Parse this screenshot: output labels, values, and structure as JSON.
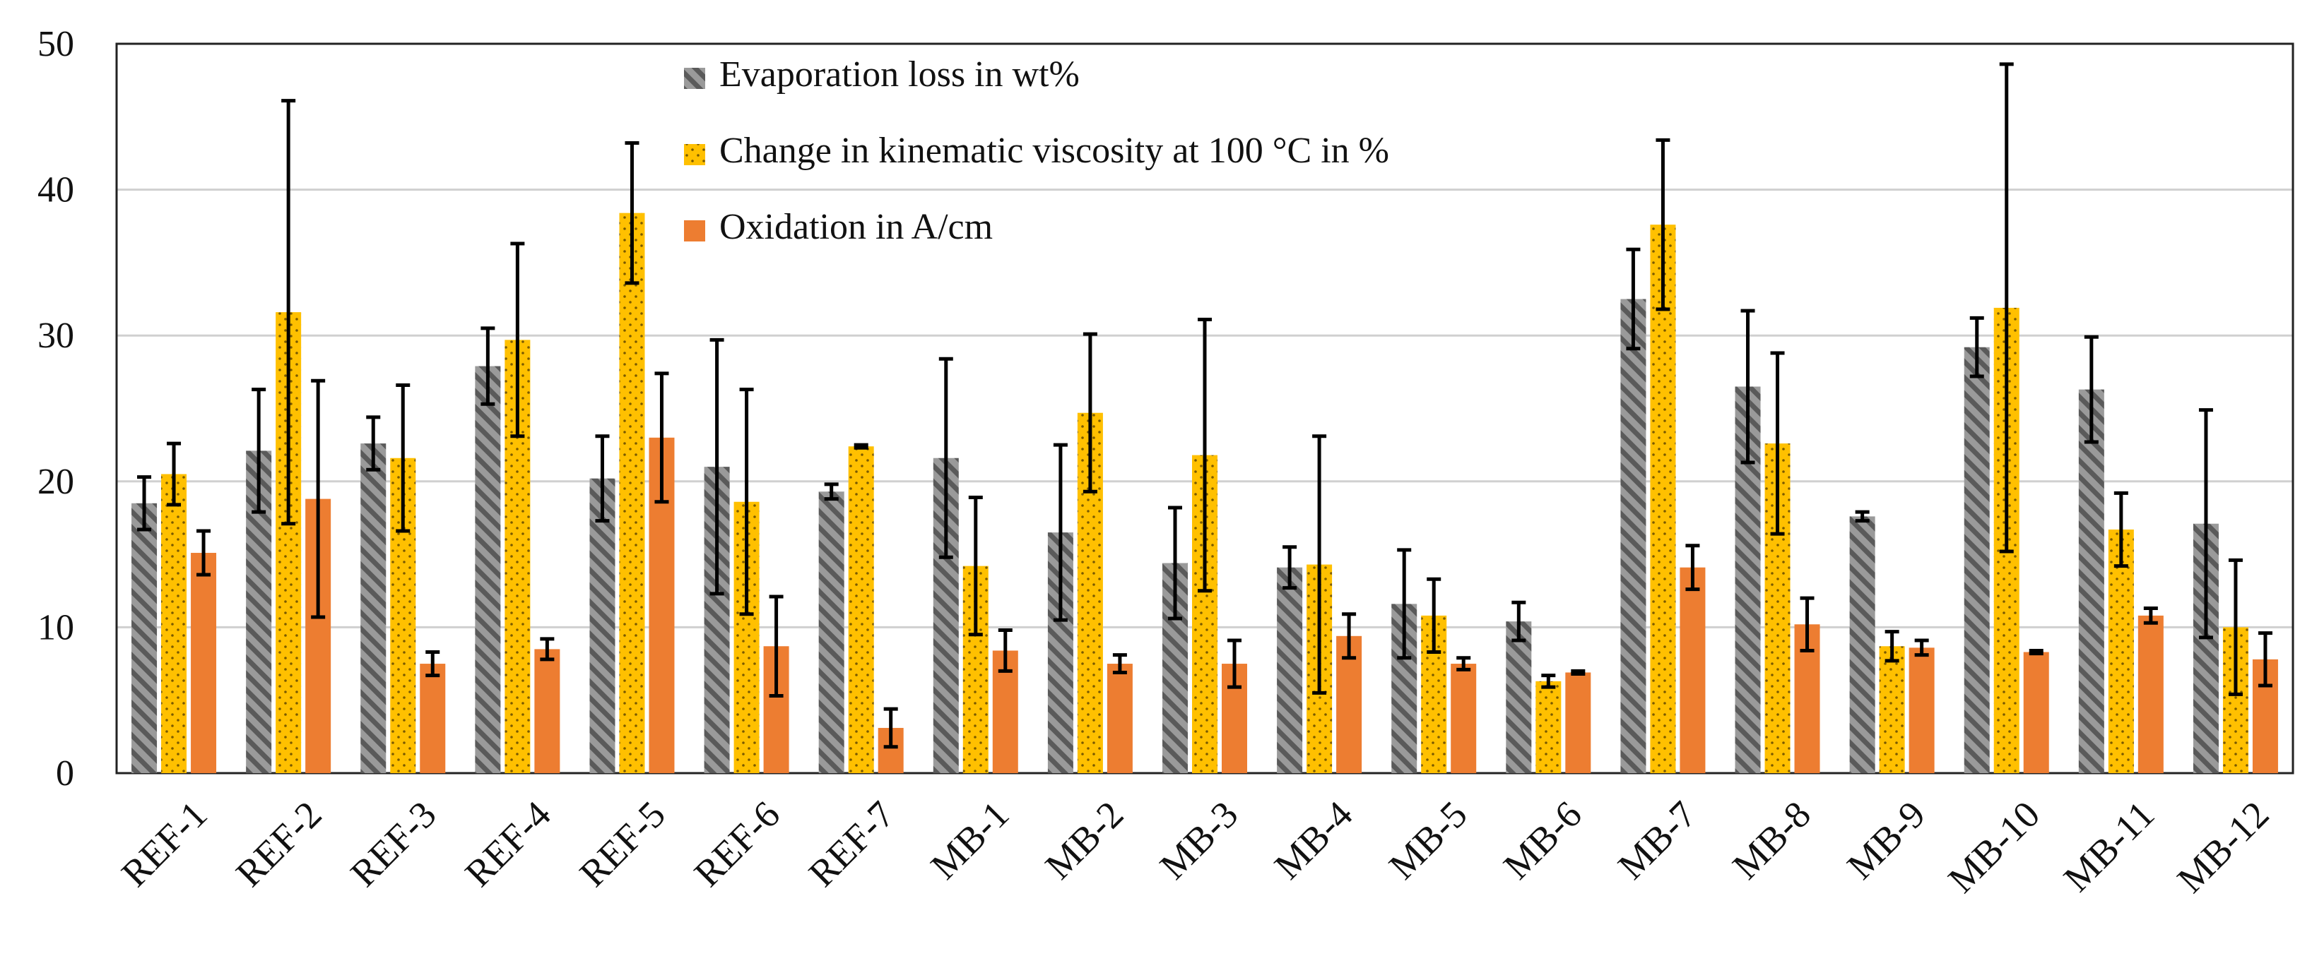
{
  "chart_data": {
    "type": "bar",
    "title": "",
    "xlabel": "",
    "ylabel": "",
    "ylim": [
      0,
      50
    ],
    "yticks": [
      0,
      10,
      20,
      30,
      40,
      50
    ],
    "grid": true,
    "legend_position": "top-center",
    "categories": [
      "REF-1",
      "REF-2",
      "REF-3",
      "REF-4",
      "REF-5",
      "REF-6",
      "REF-7",
      "MB-1",
      "MB-2",
      "MB-3",
      "MB-4",
      "MB-5",
      "MB-6",
      "MB-7",
      "MB-8",
      "MB-9",
      "MB-10",
      "MB-11",
      "MB-12"
    ],
    "series": [
      {
        "name": "Evaporation loss in wt%",
        "color": "#8c8c8c",
        "pattern": "diagonal-hatch",
        "values": [
          18.5,
          22.1,
          22.6,
          27.9,
          20.2,
          21.0,
          19.3,
          21.6,
          16.5,
          14.4,
          14.1,
          11.6,
          10.4,
          32.5,
          26.5,
          17.6,
          29.2,
          26.3,
          17.1
        ],
        "errors": [
          1.8,
          4.2,
          1.8,
          2.6,
          2.9,
          8.7,
          0.5,
          6.8,
          6.0,
          3.8,
          1.4,
          3.7,
          1.3,
          3.4,
          5.2,
          0.3,
          2.0,
          3.6,
          7.8
        ]
      },
      {
        "name": "Change in kinematic viscosity at 100 °C in %",
        "color": "#ffc000",
        "pattern": "dotted",
        "values": [
          20.5,
          31.6,
          21.6,
          29.7,
          38.4,
          18.6,
          22.4,
          14.2,
          24.7,
          21.8,
          14.3,
          10.8,
          6.3,
          37.6,
          22.6,
          8.7,
          31.9,
          16.7,
          10.0
        ],
        "errors": [
          2.1,
          14.5,
          5.0,
          6.6,
          4.8,
          7.7,
          0.1,
          4.7,
          5.4,
          9.3,
          8.8,
          2.5,
          0.4,
          5.8,
          6.2,
          1.0,
          16.7,
          2.5,
          4.6
        ]
      },
      {
        "name": "Oxidation in A/cm",
        "color": "#ed7d31",
        "pattern": "solid",
        "values": [
          15.1,
          18.8,
          7.5,
          8.5,
          23.0,
          8.7,
          3.1,
          8.4,
          7.5,
          7.5,
          9.4,
          7.5,
          6.9,
          14.1,
          10.2,
          8.6,
          8.3,
          10.8,
          7.8
        ],
        "errors": [
          1.5,
          8.1,
          0.8,
          0.7,
          4.4,
          3.4,
          1.3,
          1.4,
          0.6,
          1.6,
          1.5,
          0.4,
          0.1,
          1.5,
          1.8,
          0.5,
          0.1,
          0.5,
          1.8
        ]
      }
    ]
  }
}
